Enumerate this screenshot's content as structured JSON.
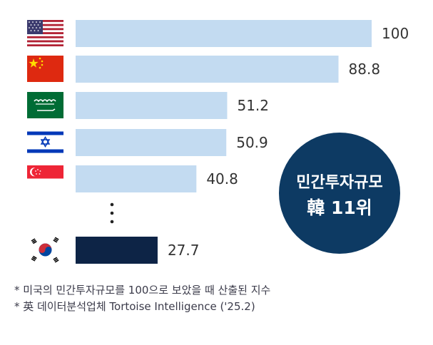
{
  "chart_data": {
    "type": "bar",
    "orientation": "horizontal",
    "categories": [
      "USA",
      "China",
      "Saudi Arabia",
      "Israel",
      "Singapore",
      "…",
      "South Korea"
    ],
    "values": [
      100,
      88.8,
      51.2,
      50.9,
      40.8,
      null,
      27.7
    ],
    "value_labels": [
      "100",
      "88.8",
      "51.2",
      "50.9",
      "40.8",
      "",
      "27.7"
    ],
    "xlim": [
      0,
      100
    ],
    "colors": {
      "bar": "#c3dbf1",
      "highlight": "#0d2446",
      "badge": "#0d3a63",
      "label": "#333333"
    },
    "highlight_category": "South Korea",
    "grid": false,
    "legend": "none"
  },
  "badge": {
    "line1": "민간투자규모",
    "line2": "韓 11위"
  },
  "flags": [
    {
      "country": "USA",
      "icon": "us-flag-icon"
    },
    {
      "country": "China",
      "icon": "china-flag-icon"
    },
    {
      "country": "Saudi Arabia",
      "icon": "saudi-flag-icon"
    },
    {
      "country": "Israel",
      "icon": "israel-flag-icon"
    },
    {
      "country": "Singapore",
      "icon": "singapore-flag-icon"
    },
    {
      "country": "South Korea",
      "icon": "korea-flag-icon"
    }
  ],
  "footnotes": [
    "* 미국의 민간투자규모를 100으로 보았을 때 산출된 지수",
    "* 英 데이터분석업체 Tortoise Intelligence ('25.2)"
  ]
}
